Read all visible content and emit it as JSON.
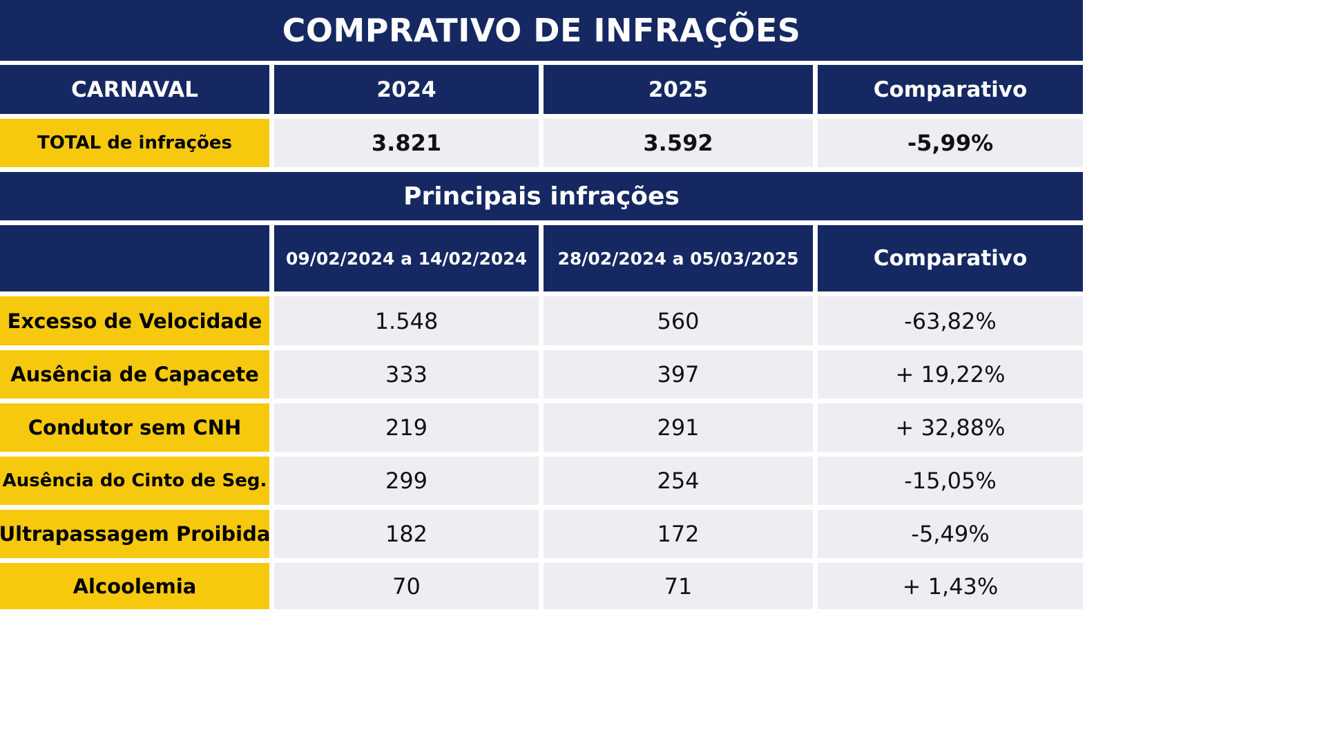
{
  "title": "COMPRATIVO DE INFRAÇÕES",
  "top_header": [
    "CARNAVAL",
    "2024",
    "2025",
    "Comparativo"
  ],
  "total_row": {
    "label": "TOTAL de infrações",
    "v2024": "3.821",
    "v2025": "3.592",
    "comparativo": "-5,99%"
  },
  "section_title": "Principais infrações",
  "sub_header": [
    "",
    "09/02/2024 a 14/02/2024",
    "28/02/2024 a 05/03/2025",
    "Comparativo"
  ],
  "rows": [
    {
      "label": "Excesso de Velocidade",
      "v2024": "1.548",
      "v2025": "560",
      "comparativo": "-63,82%"
    },
    {
      "label": "Ausência de Capacete",
      "v2024": "333",
      "v2025": "397",
      "comparativo": "+ 19,22%"
    },
    {
      "label": "Condutor sem CNH",
      "v2024": "219",
      "v2025": "291",
      "comparativo": "+ 32,88%"
    },
    {
      "label": "Ausência do Cinto de Seg.",
      "v2024": "299",
      "v2025": "254",
      "comparativo": "-15,05%"
    },
    {
      "label": "Ultrapassagem Proibida",
      "v2024": "182",
      "v2025": "172",
      "comparativo": "-5,49%"
    },
    {
      "label": "Alcoolemia",
      "v2024": "70",
      "v2025": "71",
      "comparativo": "+ 1,43%"
    }
  ],
  "colors": {
    "navy": "#152862",
    "yellow": "#f6c90e",
    "cell_bg": "#eeeef2"
  },
  "chart_data": {
    "type": "table",
    "title": "COMPRATIVO DE INFRAÇÕES",
    "columns": [
      "",
      "09/02/2024 a 14/02/2024",
      "28/02/2024 a 05/03/2025",
      "Comparativo"
    ],
    "total": {
      "label": "TOTAL de infrações",
      "2024": 3821,
      "2025": 3592,
      "comparativo_pct": -5.99
    },
    "rows": [
      {
        "label": "Excesso de Velocidade",
        "2024": 1548,
        "2025": 560,
        "comparativo_pct": -63.82
      },
      {
        "label": "Ausência de Capacete",
        "2024": 333,
        "2025": 397,
        "comparativo_pct": 19.22
      },
      {
        "label": "Condutor sem CNH",
        "2024": 219,
        "2025": 291,
        "comparativo_pct": 32.88
      },
      {
        "label": "Ausência do Cinto de Seg.",
        "2024": 299,
        "2025": 254,
        "comparativo_pct": -15.05
      },
      {
        "label": "Ultrapassagem Proibida",
        "2024": 182,
        "2025": 172,
        "comparativo_pct": -5.49
      },
      {
        "label": "Alcoolemia",
        "2024": 70,
        "2025": 71,
        "comparativo_pct": 1.43
      }
    ]
  }
}
